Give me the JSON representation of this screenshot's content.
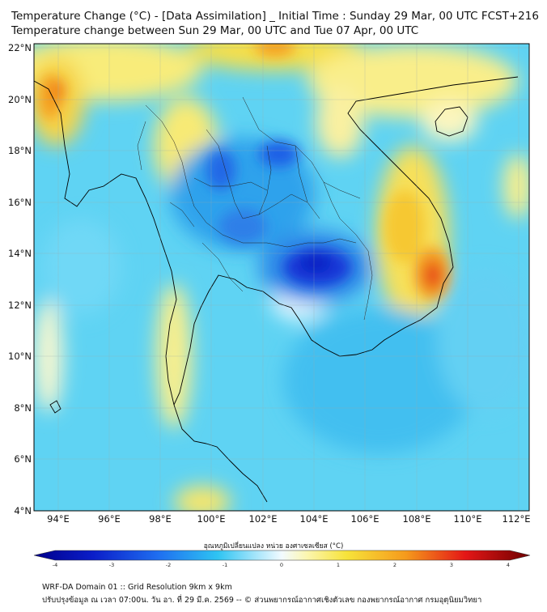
{
  "header": {
    "title": "Temperature Change (°C) - [Data Assimilation] _ Initial Time : Sunday 29 Mar, 00 UTC FCST+216",
    "subtitle": "Temperature change between Sun 29 Mar, 00 UTC and Tue 07 Apr, 00 UTC"
  },
  "map": {
    "lon_ticks": [
      "94°E",
      "96°E",
      "98°E",
      "100°E",
      "102°E",
      "104°E",
      "106°E",
      "108°E",
      "110°E",
      "112°E"
    ],
    "lat_ticks": [
      "4°N",
      "6°N",
      "8°N",
      "10°N",
      "12°N",
      "14°N",
      "16°N",
      "18°N",
      "20°N",
      "22°N"
    ],
    "lon_range": [
      93,
      112.5
    ],
    "lat_range": [
      4,
      22.2
    ],
    "grid": true
  },
  "colorbar": {
    "label": "อุณหภูมิเปลี่ยนแปลง หน่วย องศาเซลเซียส (°C)",
    "ticks": [
      "-4",
      "-3",
      "-2",
      "-1",
      "0",
      "1",
      "2",
      "3",
      "4"
    ],
    "range": [
      -4,
      4
    ],
    "colors": {
      "deep_blue": "#00008b",
      "blue": "#1f4fe0",
      "light_blue": "#56c8f0",
      "pale": "#eef8ff",
      "yellow": "#f7e65a",
      "orange": "#f4a321",
      "red": "#e00f0f",
      "dark_red": "#7b0000"
    }
  },
  "footer": {
    "line1": "WRF-DA Domain 01 :: Grid Resolution 9km x 9km",
    "line2": "ปรับปรุงข้อมูล ณ เวลา 07:00น. วัน อา. ที่ 29 มี.ค. 2569 -- © ส่วนพยากรณ์อากาศเชิงตัวเลข กองพยากรณ์อากาศ กรมอุตุนิยมวิทยา"
  }
}
